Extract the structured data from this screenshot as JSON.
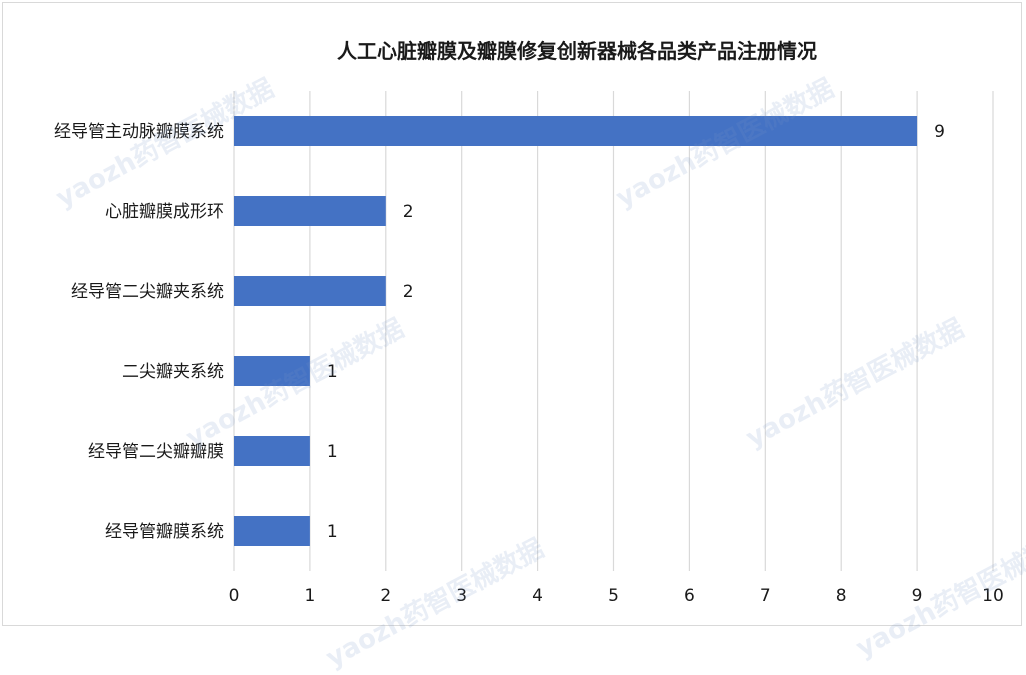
{
  "chart_data": {
    "type": "bar",
    "orientation": "horizontal",
    "title": "人工心脏瓣膜及瓣膜修复创新器械各品类产品注册情况",
    "categories": [
      "经导管主动脉瓣膜系统",
      "心脏瓣膜成形环",
      "经导管二尖瓣夹系统",
      "二尖瓣夹系统",
      "经导管二尖瓣瓣膜",
      "经导管瓣膜系统"
    ],
    "values": [
      9,
      2,
      2,
      1,
      1,
      1
    ],
    "xlim": [
      0,
      10
    ],
    "xticks": [
      0,
      1,
      2,
      3,
      4,
      5,
      6,
      7,
      8,
      9,
      10
    ],
    "grid": "vertical",
    "legend": "none",
    "bar_color": "#4472C4",
    "grid_color": "#d9d9d9"
  },
  "watermark": "yaozh药智医械数据"
}
